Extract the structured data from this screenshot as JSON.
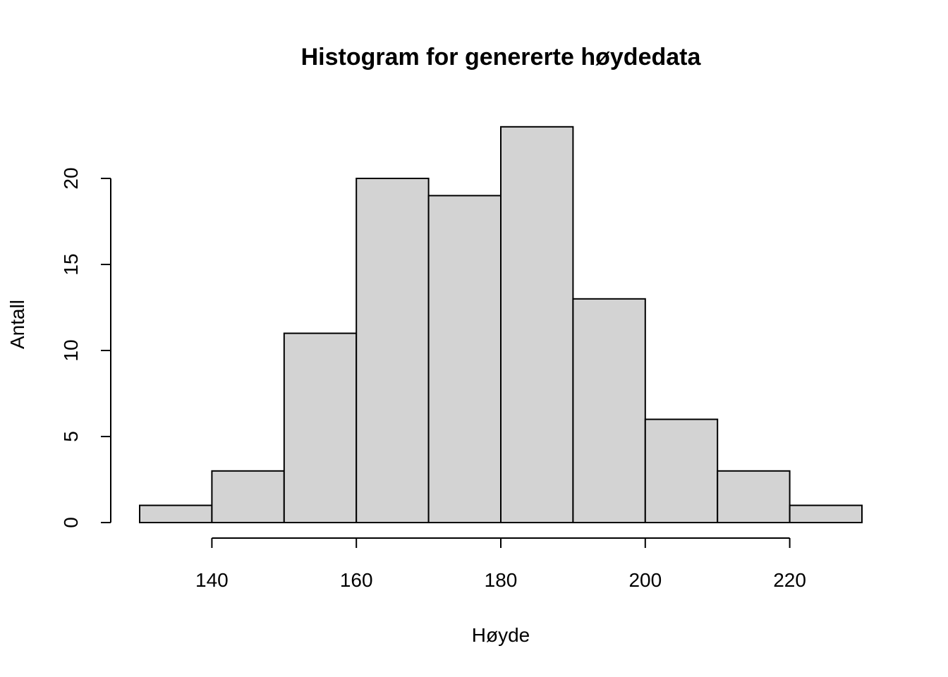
{
  "chart_data": {
    "type": "bar",
    "title": "Histogram for genererte høydedata",
    "xlabel": "Høyde",
    "ylabel": "Antall",
    "bins": [
      {
        "start": 130,
        "end": 140,
        "count": 1
      },
      {
        "start": 140,
        "end": 150,
        "count": 3
      },
      {
        "start": 150,
        "end": 160,
        "count": 11
      },
      {
        "start": 160,
        "end": 170,
        "count": 20
      },
      {
        "start": 170,
        "end": 180,
        "count": 19
      },
      {
        "start": 180,
        "end": 190,
        "count": 23
      },
      {
        "start": 190,
        "end": 200,
        "count": 13
      },
      {
        "start": 200,
        "end": 210,
        "count": 6
      },
      {
        "start": 210,
        "end": 220,
        "count": 3
      },
      {
        "start": 220,
        "end": 230,
        "count": 1
      }
    ],
    "xlim": [
      130,
      230
    ],
    "ylim": [
      0,
      23
    ],
    "x_ticks": [
      140,
      160,
      180,
      200,
      220
    ],
    "y_ticks": [
      0,
      5,
      10,
      15,
      20
    ],
    "bar_color": "#d3d3d3",
    "bar_edge_color": "#000000",
    "grid": false,
    "legend": "none"
  }
}
